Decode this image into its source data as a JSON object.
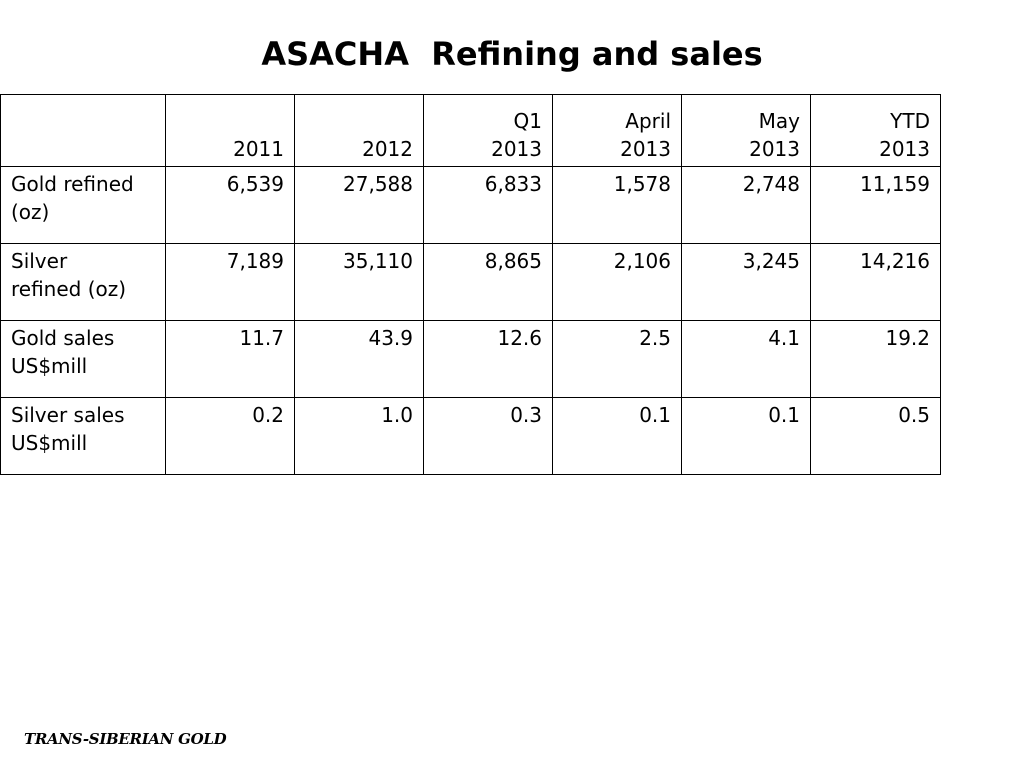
{
  "title": "ASACHA  Refining and sales",
  "table": {
    "columns": [
      {
        "line1": "",
        "line2": "2011"
      },
      {
        "line1": "",
        "line2": "2012"
      },
      {
        "line1": "Q1",
        "line2": "2013"
      },
      {
        "line1": "April",
        "line2": "2013"
      },
      {
        "line1": "May",
        "line2": "2013"
      },
      {
        "line1": "YTD",
        "line2": "2013"
      }
    ],
    "rows": [
      {
        "label_line1": "Gold refined",
        "label_line2": "(oz)",
        "values": [
          "6,539",
          "27,588",
          "6,833",
          "1,578",
          "2,748",
          "11,159"
        ]
      },
      {
        "label_line1": "Silver",
        "label_line2": "refined (oz)",
        "values": [
          "7,189",
          "35,110",
          "8,865",
          "2,106",
          "3,245",
          "14,216"
        ]
      },
      {
        "label_line1": "Gold sales",
        "label_line2": "US$mill",
        "values": [
          "11.7",
          "43.9",
          "12.6",
          "2.5",
          "4.1",
          "19.2"
        ]
      },
      {
        "label_line1": "Silver sales",
        "label_line2": "US$mill",
        "values": [
          "0.2",
          "1.0",
          "0.3",
          "0.1",
          "0.1",
          "0.5"
        ]
      }
    ]
  },
  "footer": {
    "logo_text": "TRANS-SIBERIAN GOLD"
  }
}
